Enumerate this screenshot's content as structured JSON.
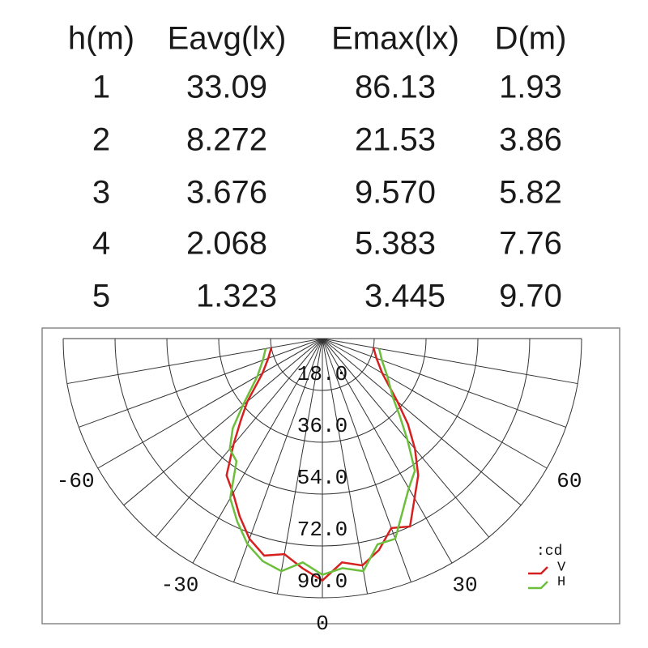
{
  "table": {
    "header": [
      "h(m)",
      "Eavg(lx)",
      "Emax(lx)",
      "D(m)"
    ],
    "rows": [
      [
        "1",
        "33.09",
        "86.13",
        "1.93"
      ],
      [
        "2",
        "8.272",
        "21.53",
        "3.86"
      ],
      [
        "3",
        "3.676",
        "9.570",
        "5.82"
      ],
      [
        "4",
        "2.068",
        "5.383",
        "7.76"
      ],
      [
        "5",
        "1.323",
        "3.445",
        "9.70"
      ]
    ]
  },
  "chart_data": {
    "type": "polar",
    "unit": ":cd",
    "theta": [
      -80,
      -70,
      -60,
      -50,
      -45,
      -40,
      -35,
      -30,
      -25,
      -20,
      -15,
      -10,
      -5,
      0,
      5,
      10,
      15,
      20,
      25,
      30,
      35,
      40,
      45,
      50,
      60,
      70,
      80
    ],
    "series": [
      {
        "name": "V",
        "color": "#d62020",
        "values": [
          18,
          20,
          24,
          34,
          40,
          48,
          58,
          62,
          68,
          74,
          78,
          76,
          80,
          84,
          78,
          80,
          76,
          70,
          72,
          64,
          58,
          50,
          42,
          34,
          24,
          20,
          18
        ]
      },
      {
        "name": "H",
        "color": "#6cbf3c",
        "values": [
          20,
          22,
          26,
          36,
          44,
          50,
          52,
          64,
          70,
          76,
          80,
          82,
          78,
          82,
          80,
          82,
          74,
          74,
          66,
          60,
          56,
          46,
          38,
          32,
          26,
          22,
          20
        ]
      }
    ],
    "rlim": [
      0,
      90
    ],
    "rticks": [
      {
        "value": 18,
        "label": "18.0"
      },
      {
        "value": 36,
        "label": "36.0"
      },
      {
        "value": 54,
        "label": "54.0"
      },
      {
        "value": 72,
        "label": "72.0"
      },
      {
        "value": 90,
        "label": "90.0"
      }
    ],
    "thetaticks": [
      -60,
      -30,
      0,
      30,
      60
    ]
  }
}
